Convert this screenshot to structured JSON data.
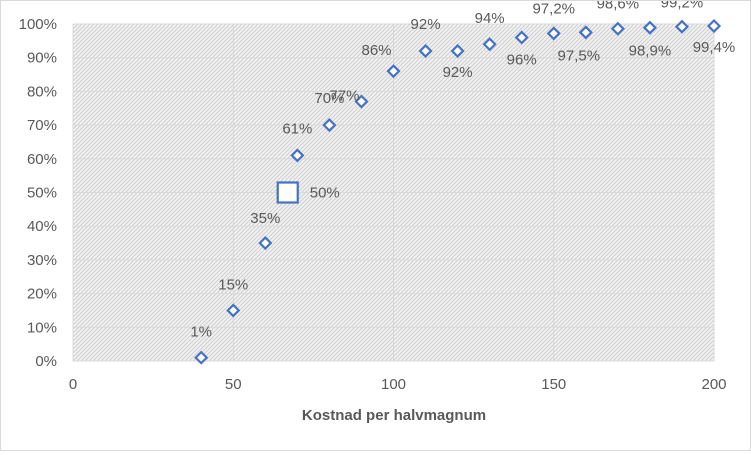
{
  "chart_data": {
    "type": "scatter",
    "title": "",
    "xlabel": "Kostnad per halvmagnum",
    "ylabel": "",
    "xlim": [
      0,
      200
    ],
    "ylim": [
      0,
      1
    ],
    "x_ticks": [
      0,
      50,
      100,
      150,
      200
    ],
    "x_tick_labels": [
      "0",
      "50",
      "100",
      "150",
      "200"
    ],
    "y_ticks": [
      0,
      0.1,
      0.2,
      0.3,
      0.4,
      0.5,
      0.6,
      0.7,
      0.8,
      0.9,
      1.0
    ],
    "y_tick_labels": [
      "0%",
      "10%",
      "20%",
      "30%",
      "40%",
      "50%",
      "60%",
      "70%",
      "80%",
      "90%",
      "100%"
    ],
    "grid": true,
    "plot_background": "hatched light gray",
    "series": [
      {
        "marker": "diamond",
        "color": "#4472c4",
        "points": [
          {
            "x": 40,
            "y": 0.01,
            "label": "1%"
          },
          {
            "x": 50,
            "y": 0.15,
            "label": "15%"
          },
          {
            "x": 60,
            "y": 0.35,
            "label": "35%"
          },
          {
            "x": 70,
            "y": 0.61,
            "label": "61%"
          },
          {
            "x": 80,
            "y": 0.7,
            "label": "70%"
          },
          {
            "x": 90,
            "y": 0.77,
            "label": "77%"
          },
          {
            "x": 100,
            "y": 0.86,
            "label": "86%"
          },
          {
            "x": 110,
            "y": 0.92,
            "label": "92%"
          },
          {
            "x": 120,
            "y": 0.92,
            "label": "92%"
          },
          {
            "x": 130,
            "y": 0.94,
            "label": "94%"
          },
          {
            "x": 140,
            "y": 0.96,
            "label": "96%"
          },
          {
            "x": 150,
            "y": 0.972,
            "label": "97,2%"
          },
          {
            "x": 160,
            "y": 0.975,
            "label": "97,5%"
          },
          {
            "x": 170,
            "y": 0.986,
            "label": "98,6%"
          },
          {
            "x": 180,
            "y": 0.989,
            "label": "98,9%"
          },
          {
            "x": 190,
            "y": 0.992,
            "label": "99,2%"
          },
          {
            "x": 200,
            "y": 0.994,
            "label": "99,4%"
          }
        ]
      },
      {
        "marker": "square",
        "color": "#4472c4",
        "points": [
          {
            "x": 67,
            "y": 0.5,
            "label": "50%"
          }
        ]
      }
    ]
  }
}
